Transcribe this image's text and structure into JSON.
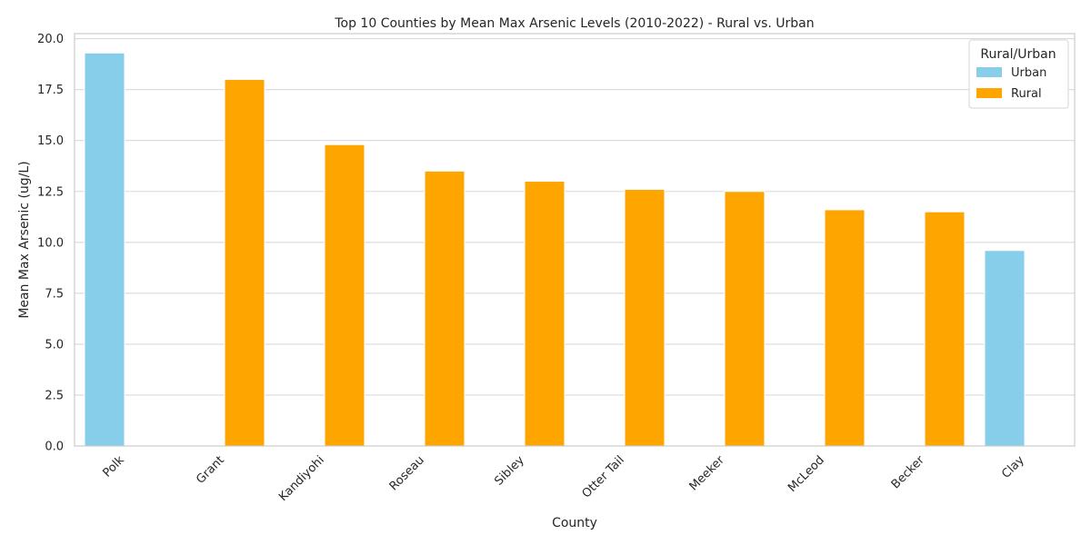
{
  "chart_data": {
    "type": "bar",
    "title": "Top 10 Counties by Mean Max Arsenic Levels (2010-2022) - Rural vs. Urban",
    "xlabel": "County",
    "ylabel": "Mean Max Arsenic (ug/L)",
    "ylim": [
      0,
      20.25
    ],
    "yticks": [
      "0.0",
      "2.5",
      "5.0",
      "7.5",
      "10.0",
      "12.5",
      "15.0",
      "17.5",
      "20.0"
    ],
    "ytick_values": [
      0,
      2.5,
      5,
      7.5,
      10,
      12.5,
      15,
      17.5,
      20
    ],
    "grid": true,
    "categories": [
      "Polk",
      "Grant",
      "Kandiyohi",
      "Roseau",
      "Sibley",
      "Otter Tail",
      "Meeker",
      "McLeod",
      "Becker",
      "Clay"
    ],
    "series": [
      {
        "name": "Urban",
        "color": "#87ceeb",
        "values": [
          19.3,
          null,
          null,
          null,
          null,
          null,
          null,
          null,
          null,
          9.6
        ]
      },
      {
        "name": "Rural",
        "color": "#ffa500",
        "values": [
          null,
          18.0,
          14.8,
          13.5,
          13.0,
          12.6,
          12.5,
          11.6,
          11.5,
          null
        ]
      }
    ],
    "legend": {
      "title": "Rural/Urban",
      "placement": "top-right"
    }
  }
}
